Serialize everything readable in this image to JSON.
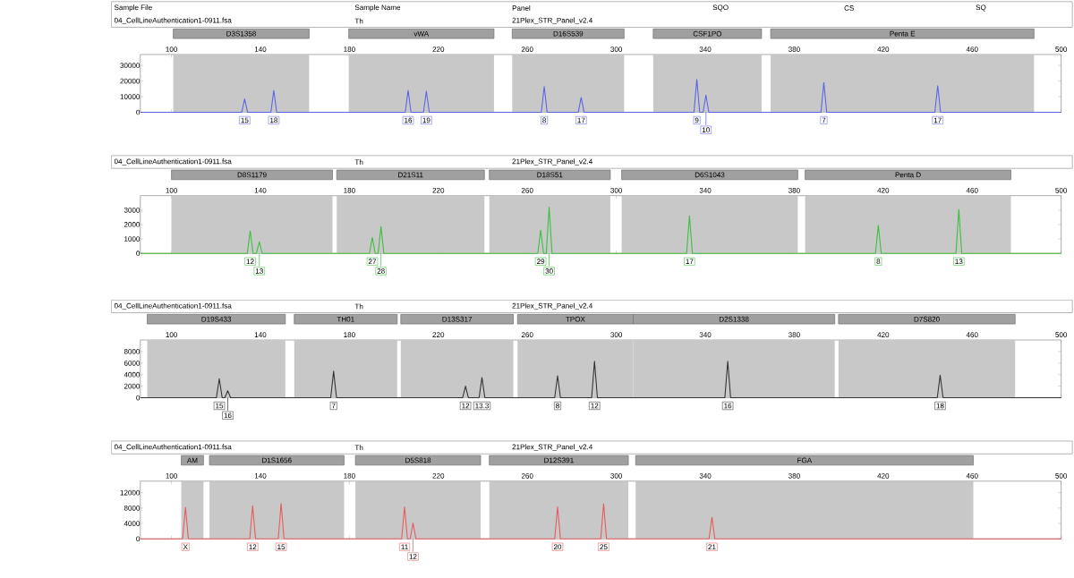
{
  "chart_data": [
    {
      "type": "line",
      "marker": "none",
      "xlim": [
        86,
        500
      ],
      "xticks": [
        100,
        140,
        180,
        220,
        260,
        300,
        340,
        380,
        420,
        460,
        500
      ],
      "ylim": [
        0,
        37000
      ],
      "yticks": [
        0,
        10000,
        20000,
        30000
      ],
      "x": [
        86,
        131.6,
        132.9,
        134.2,
        144.7,
        146.0,
        147.3,
        205.1,
        206.4,
        207.7,
        213.3,
        214.6,
        215.9,
        266.3,
        267.6,
        268.9,
        282.9,
        284.2,
        285.5,
        334.9,
        336.2,
        337.5,
        339.0,
        340.3,
        341.6,
        392.0,
        393.3,
        394.6,
        443.2,
        444.5,
        445.8,
        500
      ],
      "series": [
        {
          "color": "#5a64e6",
          "values": [
            0,
            0,
            8500,
            0,
            0,
            14000,
            0,
            0,
            14000,
            0,
            0,
            13500,
            0,
            0,
            16500,
            0,
            0,
            9500,
            0,
            0,
            21000,
            0,
            0,
            11000,
            0,
            0,
            19000,
            0,
            0,
            17000,
            0,
            0
          ]
        }
      ],
      "bands": [
        {
          "axis": "x",
          "from": 100.8,
          "to": 161.9,
          "label": "D3S1358",
          "color": "#c8c8c8"
        },
        {
          "axis": "x",
          "from": 179.7,
          "to": 245.0,
          "label": "vWA",
          "color": "#c8c8c8"
        },
        {
          "axis": "x",
          "from": 253.2,
          "to": 303.5,
          "label": "D16S539",
          "color": "#c8c8c8"
        },
        {
          "axis": "x",
          "from": 316.6,
          "to": 365.3,
          "label": "CSF1PO",
          "color": "#c8c8c8"
        },
        {
          "axis": "x",
          "from": 369.4,
          "to": 487.8,
          "label": "Penta E",
          "color": "#c8c8c8"
        }
      ],
      "annotations": [
        "Sample File",
        "Sample Name",
        "Panel",
        "SQO",
        "CS",
        "SQ",
        "04_CellLineAuthentication1-0911.fsa",
        "Th",
        "21Plex_STR_Panel_v2.4",
        {
          "text": "15",
          "x": 132.9
        },
        {
          "text": "18",
          "x": 146.0
        },
        {
          "text": "16",
          "x": 206.4
        },
        {
          "text": "19",
          "x": 214.6
        },
        {
          "text": "8",
          "x": 267.6
        },
        {
          "text": "17",
          "x": 284.2
        },
        {
          "text": "9",
          "x": 336.2,
          "y": 0
        },
        {
          "text": "10",
          "x": 340.3,
          "y": 0
        },
        {
          "text": "7",
          "x": 393.3
        },
        {
          "text": "17",
          "x": 444.5
        }
      ]
    },
    {
      "type": "line",
      "marker": "none",
      "xlim": [
        86,
        500
      ],
      "xticks": [
        100,
        140,
        180,
        220,
        260,
        300,
        340,
        380,
        420,
        460,
        500
      ],
      "ylim": [
        0,
        4000
      ],
      "yticks": [
        0,
        1000,
        2000,
        3000
      ],
      "x": [
        86,
        134.1,
        135.4,
        136.7,
        138.2,
        139.5,
        140.8,
        189.0,
        190.3,
        191.6,
        192.9,
        194.2,
        195.5,
        264.7,
        266.0,
        267.3,
        268.5,
        269.8,
        271.1,
        331.6,
        332.9,
        334.2,
        416.5,
        417.8,
        419.1,
        452.7,
        454.0,
        455.3,
        500
      ],
      "series": [
        {
          "color": "#3cbf3c",
          "values": [
            0,
            0,
            1550,
            0,
            0,
            800,
            0,
            0,
            1100,
            0,
            0,
            1850,
            0,
            0,
            1600,
            0,
            0,
            3200,
            0,
            0,
            2600,
            0,
            0,
            1950,
            0,
            0,
            3050,
            0,
            0
          ]
        }
      ],
      "bands": [
        {
          "axis": "x",
          "from": 100,
          "to": 172.4,
          "label": "D8S1179",
          "color": "#c8c8c8"
        },
        {
          "axis": "x",
          "from": 174.3,
          "to": 240.7,
          "label": "D21S11",
          "color": "#c8c8c8"
        },
        {
          "axis": "x",
          "from": 242.9,
          "to": 297.3,
          "label": "D18S51",
          "color": "#c8c8c8"
        },
        {
          "axis": "x",
          "from": 302.4,
          "to": 381.6,
          "label": "D6S1043",
          "color": "#c8c8c8"
        },
        {
          "axis": "x",
          "from": 384.9,
          "to": 477.4,
          "label": "Penta D",
          "color": "#c8c8c8"
        }
      ],
      "annotations": [
        "04_CellLineAuthentication1-0911.fsa",
        "Th",
        "21Plex_STR_Panel_v2.4",
        {
          "text": "12",
          "x": 135.4,
          "y": 0
        },
        {
          "text": "13",
          "x": 139.5,
          "y": 0
        },
        {
          "text": "27",
          "x": 190.3,
          "y": 0
        },
        {
          "text": "28",
          "x": 194.2,
          "y": 0
        },
        {
          "text": "29",
          "x": 266.0,
          "y": 0
        },
        {
          "text": "30",
          "x": 269.8,
          "y": 0
        },
        {
          "text": "17",
          "x": 332.9
        },
        {
          "text": "8",
          "x": 417.8
        },
        {
          "text": "13",
          "x": 454.0
        }
      ]
    },
    {
      "type": "line",
      "marker": "none",
      "xlim": [
        86,
        500
      ],
      "xticks": [
        100,
        140,
        180,
        220,
        260,
        300,
        340,
        380,
        420,
        460,
        500
      ],
      "ylim": [
        0,
        10000
      ],
      "yticks": [
        0,
        2000,
        4000,
        6000,
        8000
      ],
      "x": [
        86,
        120.2,
        121.5,
        122.8,
        124.0,
        125.3,
        126.6,
        171.6,
        172.9,
        174.2,
        230.9,
        232.2,
        233.5,
        238.3,
        239.6,
        240.9,
        272.3,
        273.6,
        274.9,
        288.9,
        290.2,
        291.5,
        348.8,
        350.1,
        351.4,
        444.3,
        445.6,
        446.9,
        500
      ],
      "series": [
        {
          "color": "#333333",
          "values": [
            0,
            0,
            3300,
            0,
            0,
            1200,
            0,
            0,
            4600,
            0,
            0,
            2000,
            0,
            0,
            3500,
            0,
            0,
            3800,
            0,
            0,
            6300,
            0,
            0,
            6300,
            0,
            0,
            3900,
            0,
            0
          ]
        }
      ],
      "bands": [
        {
          "axis": "x",
          "from": 89.1,
          "to": 151.2,
          "label": "D19S433",
          "color": "#c8c8c8"
        },
        {
          "axis": "x",
          "from": 155.2,
          "to": 201.5,
          "label": "TH01",
          "color": "#c8c8c8"
        },
        {
          "axis": "x",
          "from": 203.1,
          "to": 253.7,
          "label": "D13S317",
          "color": "#c8c8c8"
        },
        {
          "axis": "x",
          "from": 255.6,
          "to": 307.6,
          "label": "TPOX",
          "color": "#c8c8c8"
        },
        {
          "axis": "x",
          "from": 307.6,
          "to": 398.2,
          "label": "D2S1338",
          "color": "#c8c8c8"
        },
        {
          "axis": "x",
          "from": 399.9,
          "to": 479.3,
          "label": "D7S820",
          "color": "#c8c8c8"
        }
      ],
      "annotations": [
        "04_CellLineAuthentication1-0911.fsa",
        "Th",
        "21Plex_STR_Panel_v2.4",
        {
          "text": "15",
          "x": 121.5,
          "y": 0
        },
        {
          "text": "16",
          "x": 125.3,
          "y": 0
        },
        {
          "text": "7",
          "x": 172.9
        },
        {
          "text": "12",
          "x": 232.2
        },
        {
          "text": "13.3",
          "x": 239.6
        },
        {
          "text": "8",
          "x": 273.6
        },
        {
          "text": "12",
          "x": 290.2
        },
        {
          "text": "16",
          "x": 350.1
        },
        {
          "text": "18",
          "x": 445.6
        }
      ]
    },
    {
      "type": "line",
      "marker": "none",
      "xlim": [
        86,
        500
      ],
      "xticks": [
        100,
        140,
        180,
        220,
        260,
        300,
        340,
        380,
        420,
        460,
        500
      ],
      "ylim": [
        0,
        15000
      ],
      "yticks": [
        0,
        4000,
        8000,
        12000
      ],
      "x": [
        86,
        105.0,
        106.3,
        107.6,
        135.2,
        136.5,
        137.8,
        148.0,
        149.3,
        150.6,
        203.5,
        204.8,
        206.1,
        207.3,
        208.6,
        209.9,
        272.3,
        273.6,
        274.9,
        293.0,
        294.3,
        295.6,
        341.7,
        343.0,
        344.3,
        500
      ],
      "series": [
        {
          "color": "#e85a5a",
          "values": [
            0,
            0,
            8200,
            0,
            0,
            8600,
            0,
            0,
            9200,
            0,
            0,
            8300,
            0,
            0,
            4100,
            0,
            0,
            8300,
            0,
            0,
            9100,
            0,
            0,
            5600,
            0,
            0
          ]
        }
      ],
      "bands": [
        {
          "axis": "x",
          "from": 104.4,
          "to": 114.4,
          "label": "AM",
          "color": "#c8c8c8"
        },
        {
          "axis": "x",
          "from": 117.1,
          "to": 177.6,
          "label": "D1S1656",
          "color": "#c8c8c8"
        },
        {
          "axis": "x",
          "from": 182.7,
          "to": 239.0,
          "label": "D5S818",
          "color": "#c8c8c8"
        },
        {
          "axis": "x",
          "from": 242.9,
          "to": 305.4,
          "label": "D12S391",
          "color": "#c8c8c8"
        },
        {
          "axis": "x",
          "from": 308.7,
          "to": 460.5,
          "label": "FGA",
          "color": "#c8c8c8"
        }
      ],
      "annotations": [
        "04_CellLineAuthentication1-0911.fsa",
        "Th",
        "21Plex_STR_Panel_v2.4",
        {
          "text": "X",
          "x": 106.3
        },
        {
          "text": "12",
          "x": 136.5
        },
        {
          "text": "15",
          "x": 149.3
        },
        {
          "text": "11",
          "x": 204.8,
          "y": 0
        },
        {
          "text": "12",
          "x": 208.6,
          "y": 0
        },
        {
          "text": "20",
          "x": 273.6
        },
        {
          "text": "25",
          "x": 294.3
        },
        {
          "text": "21",
          "x": 343.0
        }
      ]
    }
  ]
}
